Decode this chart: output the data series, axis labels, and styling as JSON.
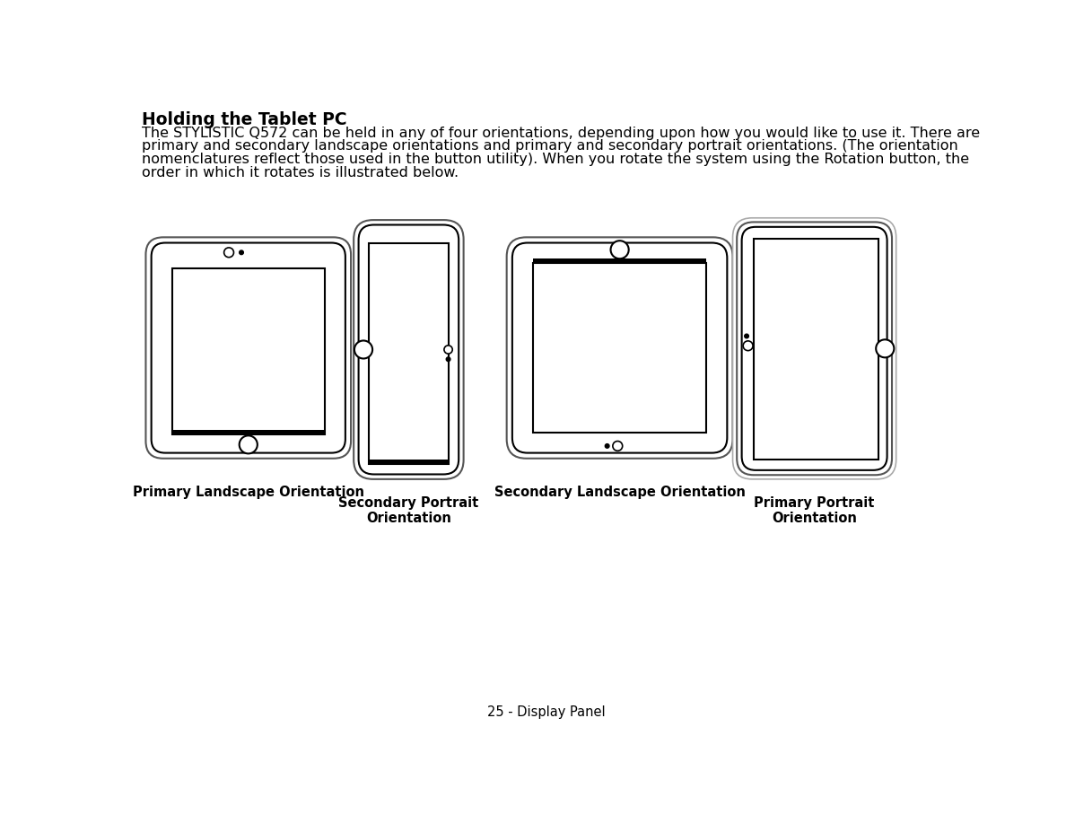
{
  "title": "Holding the Tablet PC",
  "body_lines": [
    "The STYLISTIC Q572 can be held in any of four orientations, depending upon how you would like to use it. There are",
    "primary and secondary landscape orientations and primary and secondary portrait orientations. (The orientation",
    "nomenclatures reflect those used in the button utility). When you rotate the system using the Rotation button, the",
    "order in which it rotates is illustrated below."
  ],
  "footer": "25 - Display Panel",
  "labels": [
    "Primary Landscape Orientation",
    "Secondary Portrait\nOrientation",
    "Secondary Landscape Orientation",
    "Primary Portrait\nOrientation"
  ],
  "bg_color": "#ffffff",
  "line_color": "#000000",
  "text_color": "#000000"
}
